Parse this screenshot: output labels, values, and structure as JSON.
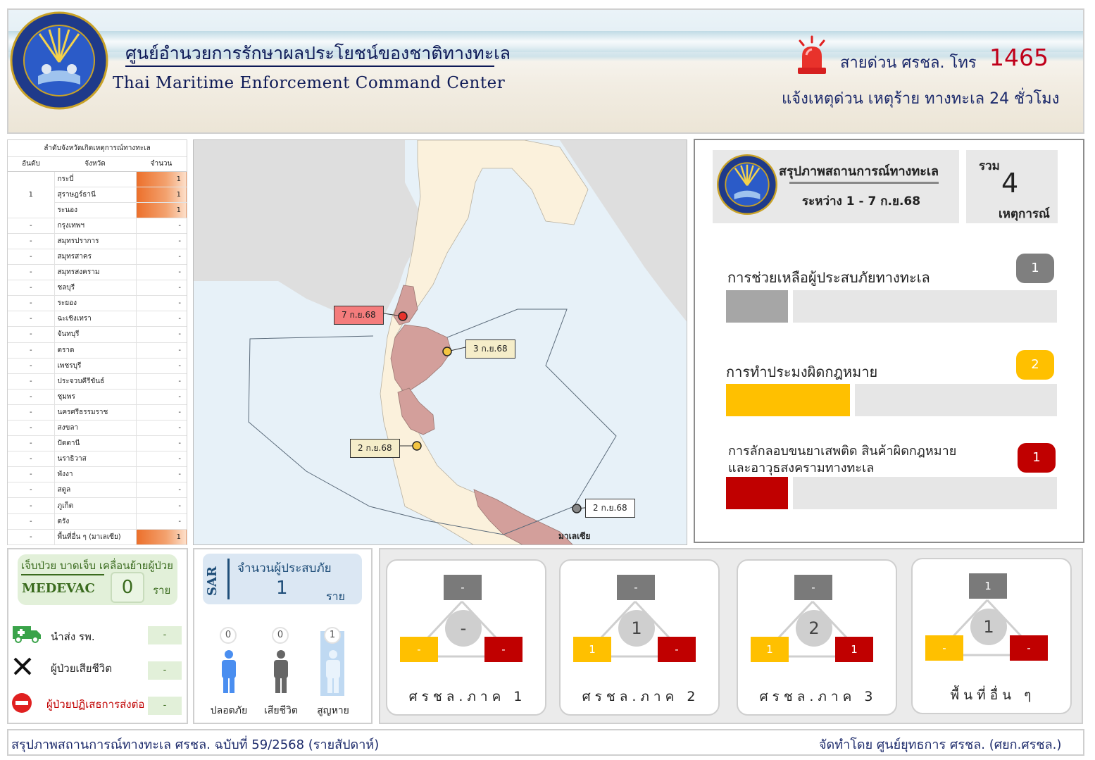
{
  "header": {
    "title_th": "ศูนย์อำนวยการรักษาผลประโยชน์ของชาติทางทะเล",
    "title_en": "Thai Maritime Enforcement Command Center",
    "hotline_label": "สายด่วน ศรชล. โทร",
    "hotline_number": "1465",
    "hotline_sub": "แจ้งเหตุด่วน เหตุร้าย ทางทะเล 24 ชั่วโมง",
    "logo_icon": "tmecc-seal-icon",
    "siren_icon": "siren-icon"
  },
  "ranking": {
    "caption": "ลำดับจังหวัดเกิดเหตุการณ์ทางทะเล",
    "headers": [
      "อันดับ",
      "จังหวัด",
      "จำนวน"
    ],
    "top_rank": "1",
    "top_rows": [
      {
        "province": "กระบี่",
        "count": "1"
      },
      {
        "province": "สุราษฎร์ธานี",
        "count": "1"
      },
      {
        "province": "ระนอง",
        "count": "1"
      }
    ],
    "rows": [
      {
        "rank": "-",
        "province": "กรุงเทพฯ",
        "count": "-"
      },
      {
        "rank": "-",
        "province": "สมุทรปราการ",
        "count": "-"
      },
      {
        "rank": "-",
        "province": "สมุทรสาคร",
        "count": "-"
      },
      {
        "rank": "-",
        "province": "สมุทรสงคราม",
        "count": "-"
      },
      {
        "rank": "-",
        "province": "ชลบุรี",
        "count": "-"
      },
      {
        "rank": "-",
        "province": "ระยอง",
        "count": "-"
      },
      {
        "rank": "-",
        "province": "ฉะเชิงเทรา",
        "count": "-"
      },
      {
        "rank": "-",
        "province": "จันทบุรี",
        "count": "-"
      },
      {
        "rank": "-",
        "province": "ตราด",
        "count": "-"
      },
      {
        "rank": "-",
        "province": "เพชรบุรี",
        "count": "-"
      },
      {
        "rank": "-",
        "province": "ประจวบคีรีขันธ์",
        "count": "-"
      },
      {
        "rank": "-",
        "province": "ชุมพร",
        "count": "-"
      },
      {
        "rank": "-",
        "province": "นครศรีธรรมราช",
        "count": "-"
      },
      {
        "rank": "-",
        "province": "สงขลา",
        "count": "-"
      },
      {
        "rank": "-",
        "province": "ปัตตานี",
        "count": "-"
      },
      {
        "rank": "-",
        "province": "นราธิวาส",
        "count": "-"
      },
      {
        "rank": "-",
        "province": "พังงา",
        "count": "-"
      },
      {
        "rank": "-",
        "province": "สตูล",
        "count": "-"
      },
      {
        "rank": "-",
        "province": "ภูเก็ต",
        "count": "-"
      },
      {
        "rank": "-",
        "province": "ตรัง",
        "count": "-"
      }
    ],
    "last_row": {
      "rank": "-",
      "province": "พื้นที่อื่น ๆ (มาเลเซีย)",
      "count": "1"
    }
  },
  "map": {
    "events": [
      {
        "label": "7 ก.ย.68",
        "color": "#f47c7c"
      },
      {
        "label": "3 ก.ย.68",
        "color": "#f5edc9"
      },
      {
        "label": "2 ก.ย.68",
        "color": "#f5edc9"
      },
      {
        "label": "2 ก.ย.68",
        "color": "#ffffff"
      }
    ],
    "country_label": "มาเลเซีย",
    "colors": {
      "sea": "#e7f1f8",
      "land": "#fbf1dc",
      "highlight": "#d39f9b",
      "neighbor": "#dedede"
    }
  },
  "summary": {
    "title": "สรุปภาพสถานการณ์ทางทะเล",
    "range": "ระหว่าง  1 - 7 ก.ย.68",
    "total_label": "รวม",
    "total": "4",
    "total_unit": "เหตุการณ์",
    "categories": [
      {
        "label": "การช่วยเหลือผู้ประสบภัยทางทะเล",
        "value": "1",
        "color": "#7f7f7f",
        "bar_color": "#a6a6a6",
        "share": 0.25
      },
      {
        "label": "การทำประมงผิดกฎหมาย",
        "value": "2",
        "color": "#ffc000",
        "bar_color": "#ffc000",
        "share": 0.5
      },
      {
        "label_line1": "การลักลอบขนยาเสพติด สินค้าผิดกฎหมาย",
        "label_line2": "และอาวุธสงครามทางทะเล",
        "value": "1",
        "color": "#c00000",
        "bar_color": "#c00000",
        "share": 0.25
      }
    ]
  },
  "medevac": {
    "head": "เจ็บป่วย บาดเจ็บ เคลื่อนย้ายผู้ป่วย",
    "label": "MEDEVAC",
    "count": "0",
    "unit": "ราย",
    "rows": [
      {
        "label": "นำส่ง รพ.",
        "value": "-",
        "icon": "ambulance-icon"
      },
      {
        "label": "ผู้ป่วยเสียชีวิต",
        "value": "-",
        "icon": "cross-mark-icon"
      },
      {
        "label": "ผู้ป่วยปฏิเสธการส่งต่อ",
        "value": "-",
        "icon": "no-entry-icon"
      }
    ]
  },
  "sar": {
    "tag": "SAR",
    "title": "จำนวนผู้ประสบภัย",
    "count": "1",
    "unit": "ราย",
    "people": [
      {
        "label": "ปลอดภัย",
        "count": "0",
        "color": "#4a8ef0"
      },
      {
        "label": "เสียชีวิต",
        "count": "0",
        "color": "#666666"
      },
      {
        "label": "สูญหาย",
        "count": "1",
        "color": "#b9d6f2"
      }
    ]
  },
  "regions": [
    {
      "name": "ศรชล.ภาค 1",
      "top": "-",
      "center": "-",
      "left": "-",
      "right": "-"
    },
    {
      "name": "ศรชล.ภาค 2",
      "top": "-",
      "center": "1",
      "left": "1",
      "right": "-"
    },
    {
      "name": "ศรชล.ภาค 3",
      "top": "-",
      "center": "2",
      "left": "1",
      "right": "1"
    },
    {
      "name": "พื้นที่อื่น ๆ",
      "top": "1",
      "center": "1",
      "left": "-",
      "right": "-"
    }
  ],
  "footer": {
    "left": "สรุปภาพสถานการณ์ทางทะเล ศรชล. ฉบับที่ 59/2568 (รายสัปดาห์)",
    "right": "จัดทำโดย ศูนย์ยุทธการ ศรชล. (ศยก.ศรชล.)"
  }
}
